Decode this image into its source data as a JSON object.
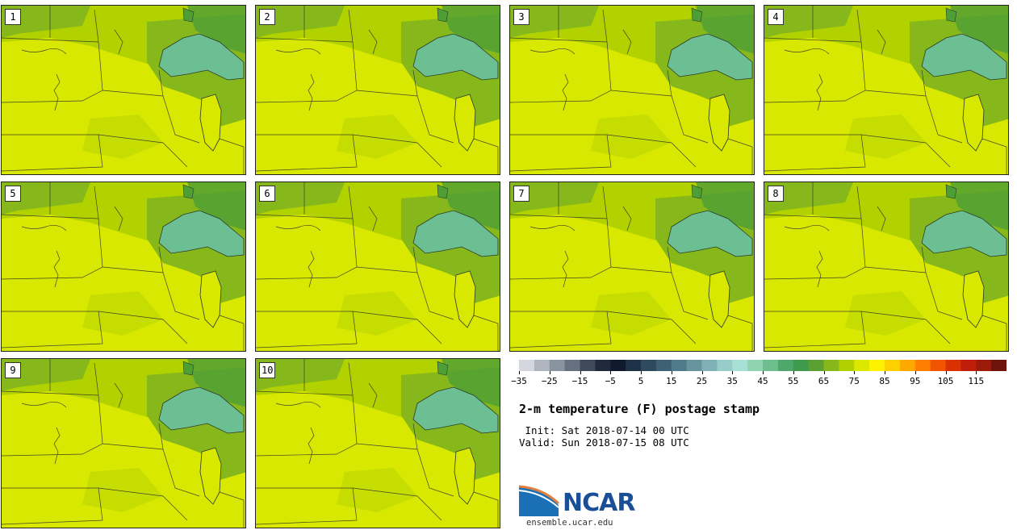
{
  "panels": [
    {
      "label": "1"
    },
    {
      "label": "2"
    },
    {
      "label": "3"
    },
    {
      "label": "4"
    },
    {
      "label": "5"
    },
    {
      "label": "6"
    },
    {
      "label": "7"
    },
    {
      "label": "8"
    },
    {
      "label": "9"
    },
    {
      "label": "10"
    }
  ],
  "colorbar": {
    "tick_labels": [
      "−35",
      "−25",
      "−15",
      "−5",
      "5",
      "15",
      "25",
      "35",
      "45",
      "55",
      "65",
      "75",
      "85",
      "95",
      "105",
      "115"
    ],
    "colors": [
      "#d4d8de",
      "#b0b6bf",
      "#8a93a0",
      "#66707f",
      "#404a5b",
      "#1f2a3d",
      "#0f1a2e",
      "#1e3347",
      "#2e4a5d",
      "#3e6173",
      "#507a89",
      "#68949f",
      "#7eb0b6",
      "#98ccc8",
      "#a7e0d4",
      "#8fd3b0",
      "#6dbf8e",
      "#4ea86c",
      "#3e9a4c",
      "#5aa033",
      "#86b81c",
      "#b0d000",
      "#dde800",
      "#fff200",
      "#ffd000",
      "#ffa800",
      "#ff7f00",
      "#f25500",
      "#d93200",
      "#bf1f0a",
      "#9c1a0a",
      "#6e140a"
    ]
  },
  "title": "2-m temperature (F) postage stamp",
  "init": " Init: Sat 2018-07-14 00 UTC",
  "valid": "Valid: Sun 2018-07-15 08 UTC",
  "logo": {
    "name": "NCAR",
    "url": "ensemble.ucar.edu"
  },
  "colors": {
    "land_warm": "#d8e800",
    "land_mid": "#b2d200",
    "land_cool": "#86b81c",
    "lake": "#6cbf93",
    "forest": "#4e9e36"
  }
}
